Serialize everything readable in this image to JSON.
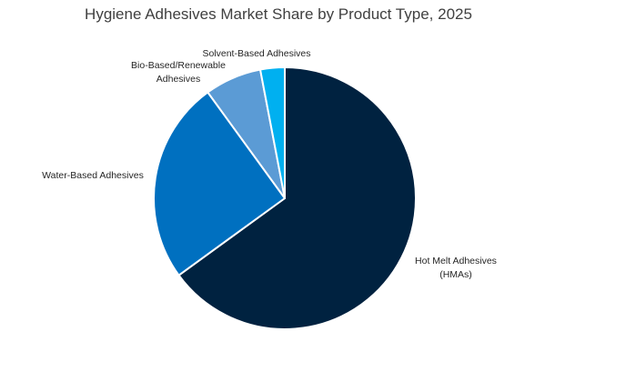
{
  "chart_data": {
    "type": "pie",
    "title": "Hygiene Adhesives Market Share by Product Type, 2025",
    "slices": [
      {
        "label": "Hot Melt Adhesives (HMAs)",
        "label_lines": [
          "Hot Melt Adhesives",
          "(HMAs)"
        ],
        "value": 65,
        "color": "#002240"
      },
      {
        "label": "Water-Based Adhesives",
        "label_lines": [
          "Water-Based Adhesives"
        ],
        "value": 25,
        "color": "#0070c0"
      },
      {
        "label": "Bio-Based/Renewable Adhesives",
        "label_lines": [
          "Bio-Based/Renewable",
          "Adhesives"
        ],
        "value": 7,
        "color": "#5b9bd5"
      },
      {
        "label": "Solvent-Based Adhesives",
        "label_lines": [
          "Solvent-Based Adhesives"
        ],
        "value": 3,
        "color": "#00b0f0"
      }
    ],
    "start_angle_deg": 0,
    "direction": "clockwise",
    "legend": "none",
    "data_labels": "category-name-outside"
  }
}
